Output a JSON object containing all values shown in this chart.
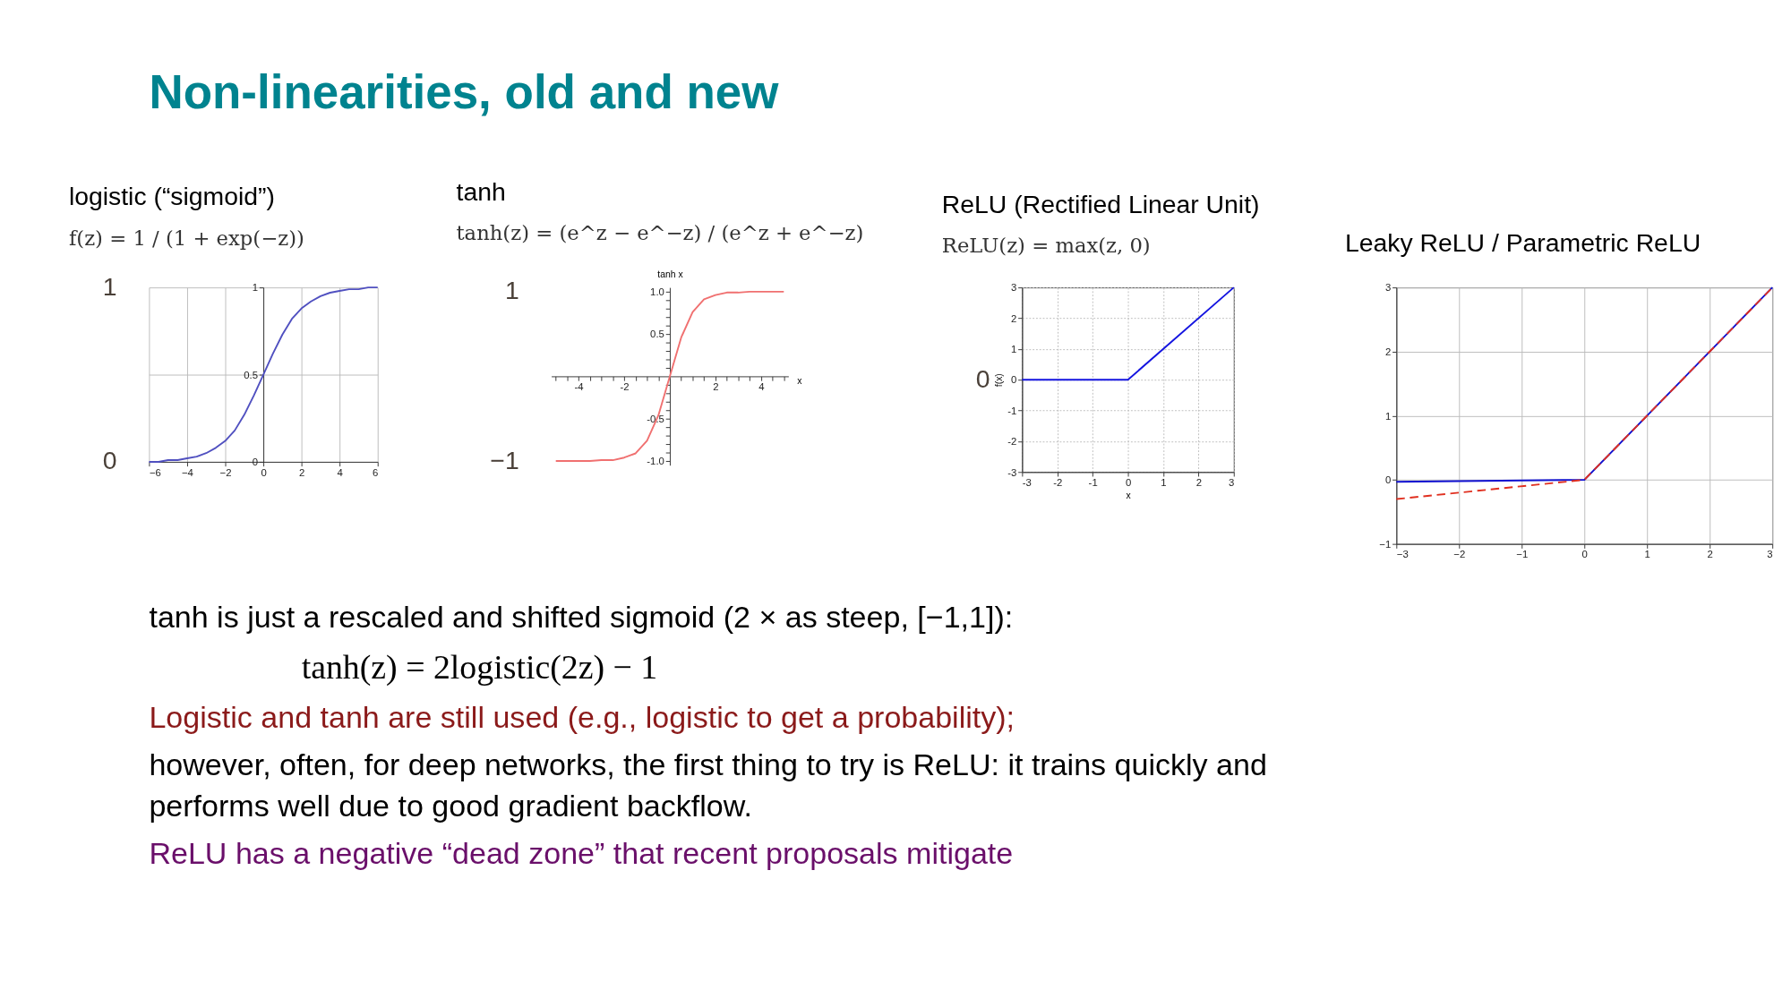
{
  "chart_data": [
    {
      "type": "other",
      "title": "Non-linearities, old and new"
    },
    {
      "type": "line",
      "title": "logistic (“sigmoid”)",
      "subtitle": "f(z) = 1 / (1 + exp(−z))",
      "xlim": [
        -6,
        6
      ],
      "ylim": [
        0,
        1
      ],
      "xticks": [
        {
          "value": -6,
          "label": "−6"
        },
        {
          "value": -4,
          "label": "−4"
        },
        {
          "value": -2,
          "label": "−2"
        },
        0,
        2,
        4,
        6
      ],
      "yticks": [
        0,
        0.5,
        1
      ],
      "grid": true,
      "annotations": [
        "1",
        "0"
      ],
      "series": [
        {
          "color": "#5050c0",
          "x": [
            -6,
            -5.5,
            -5,
            -4.5,
            -4,
            -3.5,
            -3,
            -2.5,
            -2,
            -1.5,
            -1,
            -0.5,
            0,
            0.5,
            1,
            1.5,
            2,
            2.5,
            3,
            3.5,
            4,
            4.5,
            5,
            5.5,
            6
          ],
          "values": [
            0.0,
            0.0,
            0.01,
            0.01,
            0.02,
            0.03,
            0.05,
            0.08,
            0.12,
            0.18,
            0.27,
            0.38,
            0.5,
            0.62,
            0.73,
            0.82,
            0.88,
            0.92,
            0.95,
            0.97,
            0.98,
            0.99,
            0.99,
            1.0,
            1.0
          ]
        }
      ]
    },
    {
      "type": "line",
      "title": "tanh",
      "subtitle": "tanh(z) = (e^z − e^−z) / (e^z + e^−z)",
      "xlabel": "x",
      "ylabel": "tanh x",
      "xlim": [
        -5.2,
        5.2
      ],
      "ylim": [
        -1.05,
        1.05
      ],
      "xticks": [
        {
          "value": -5,
          "label": null
        },
        {
          "value": -4.5,
          "label": null
        },
        -4,
        {
          "value": -3.5,
          "label": null
        },
        {
          "value": -3,
          "label": null
        },
        {
          "value": -2.5,
          "label": null
        },
        -2,
        {
          "value": -1.5,
          "label": null
        },
        {
          "value": -1,
          "label": null
        },
        {
          "value": -0.5,
          "label": null
        },
        {
          "value": 0.5,
          "label": null
        },
        {
          "value": 1,
          "label": null
        },
        {
          "value": 1.5,
          "label": null
        },
        2,
        {
          "value": 2.5,
          "label": null
        },
        {
          "value": 3,
          "label": null
        },
        {
          "value": 3.5,
          "label": null
        },
        4,
        {
          "value": 4.5,
          "label": null
        },
        {
          "value": 5,
          "label": null
        }
      ],
      "yticks": [
        {
          "value": -1,
          "label": "-1.0"
        },
        {
          "value": -0.9,
          "label": null
        },
        {
          "value": -0.8,
          "label": null
        },
        {
          "value": -0.7,
          "label": null
        },
        {
          "value": -0.6,
          "label": null
        },
        -0.5,
        {
          "value": -0.4,
          "label": null
        },
        {
          "value": -0.3,
          "label": null
        },
        {
          "value": -0.2,
          "label": null
        },
        {
          "value": -0.1,
          "label": null
        },
        {
          "value": 0.1,
          "label": null
        },
        {
          "value": 0.2,
          "label": null
        },
        {
          "value": 0.3,
          "label": null
        },
        {
          "value": 0.4,
          "label": null
        },
        0.5,
        {
          "value": 0.6,
          "label": null
        },
        {
          "value": 0.7,
          "label": null
        },
        {
          "value": 0.8,
          "label": null
        },
        {
          "value": 0.9,
          "label": null
        },
        {
          "value": 1,
          "label": "1.0"
        }
      ],
      "annotations": [
        "1",
        "−1"
      ],
      "series": [
        {
          "color": "#f07070",
          "x": [
            -5,
            -4.5,
            -4,
            -3.5,
            -3,
            -2.5,
            -2,
            -1.5,
            -1,
            -0.5,
            0,
            0.5,
            1,
            1.5,
            2,
            2.5,
            3,
            3.5,
            4,
            4.5,
            5
          ],
          "values": [
            -1.0,
            -1.0,
            -1.0,
            -1.0,
            -0.99,
            -0.99,
            -0.96,
            -0.91,
            -0.76,
            -0.46,
            0,
            0.46,
            0.76,
            0.91,
            0.96,
            0.99,
            0.99,
            1.0,
            1.0,
            1.0,
            1.0
          ]
        }
      ]
    },
    {
      "type": "line",
      "title": "ReLU  (Rectified Linear Unit)",
      "subtitle": "ReLU(z) = max(z, 0)",
      "xlabel": "x",
      "ylabel": "f(x)",
      "xlim": [
        -3,
        3
      ],
      "ylim": [
        -3,
        3
      ],
      "xticks": [
        -3,
        -2,
        -1,
        0,
        1,
        2,
        3
      ],
      "yticks": [
        -3,
        -2,
        -1,
        0,
        1,
        2,
        3
      ],
      "grid": true,
      "annotations": [
        "0"
      ],
      "series": [
        {
          "color": "#1515e0",
          "x": [
            -3,
            0,
            3
          ],
          "values": [
            0,
            0,
            3
          ]
        }
      ]
    },
    {
      "type": "line",
      "title": "Leaky ReLU / Parametric ReLU",
      "xlim": [
        -3,
        3
      ],
      "ylim": [
        -1,
        3
      ],
      "xticks": [
        {
          "value": -3,
          "label": "−3"
        },
        {
          "value": -2,
          "label": "−2"
        },
        {
          "value": -1,
          "label": "−1"
        },
        0,
        1,
        2,
        3
      ],
      "yticks": [
        {
          "value": -1,
          "label": "−1"
        },
        0,
        1,
        2,
        3
      ],
      "grid": true,
      "series": [
        {
          "color": "#1010d0",
          "line_style": "solid",
          "x": [
            -3,
            0,
            3
          ],
          "values": [
            -0.03,
            0,
            3
          ]
        },
        {
          "color": "#e03020",
          "line_style": "dashed",
          "x": [
            -3,
            0,
            3
          ],
          "values": [
            -0.3,
            0,
            3
          ]
        }
      ]
    },
    {
      "type": "other",
      "annotations": [
        "tanh is just a rescaled and shifted sigmoid (2 × as steep, [−1,1]):",
        "tanh(z) = 2logistic(2z) − 1",
        "Logistic and tanh are still used (e.g., logistic to get a probability);",
        "however, often, for deep networks, the first thing to try is ReLU: it trains quickly and performs well due to good gradient backflow.",
        "ReLU has a negative “dead zone” that recent proposals mitigate"
      ]
    }
  ]
}
